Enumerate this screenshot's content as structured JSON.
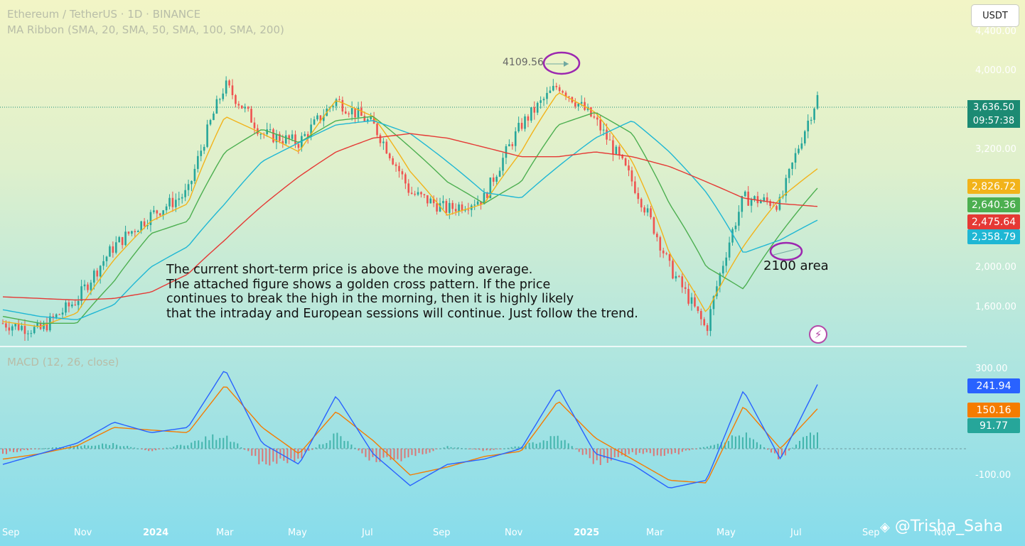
{
  "header": {
    "symbol_line": "Ethereum / TetherUS · 1D · BINANCE",
    "indicator_line": "MA Ribbon (SMA, 20, SMA, 50, SMA, 100, SMA, 200)",
    "macd_label": "MACD (12, 26, close)",
    "currency_button": "USDT"
  },
  "annotations": {
    "peak_label": "4109.56",
    "support_label": "2100 area",
    "note": "The current short-term price is above the moving average.\nThe attached figure shows a golden cross pattern. If the price\ncontinues to break the high in the morning, then it is highly likely\nthat the intraday and European sessions will continue. Just follow the trend."
  },
  "price_axis_ticks": [
    "4,400.00",
    "4,000.00",
    "3,200.00",
    "2,000.00",
    "1,600.00"
  ],
  "macd_axis_ticks": [
    "300.00",
    "-100.00"
  ],
  "price_tags": {
    "last": "3,636.50",
    "countdown": "09:57:38",
    "sma20": "2,826.72",
    "sma50": "2,640.36",
    "sma200": "2,475.64",
    "sma100": "2,358.79"
  },
  "macd_tags": {
    "macd": "241.94",
    "signal": "150.16",
    "hist": "91.77"
  },
  "x_axis_labels": [
    "Sep",
    "Nov",
    "2024",
    "Mar",
    "May",
    "Jul",
    "Sep",
    "Nov",
    "2025",
    "Mar",
    "May",
    "Jul",
    "Sep",
    "Nov"
  ],
  "watermark": "@Trisha_Saha",
  "colors": {
    "up": "#26a69a",
    "down": "#ef5350",
    "sma20": "#f2b31a",
    "sma50": "#4caf50",
    "sma100": "#1fb7d4",
    "sma200": "#e53935",
    "macd": "#2962ff",
    "signal": "#f57c00",
    "annotation": "#9c27b0"
  },
  "chart_data": [
    {
      "type": "line",
      "title": "Ethereum / TetherUS · 1D · BINANCE",
      "ylim": [
        1450,
        4500
      ],
      "x": [
        "Sep 2023",
        "Oct 2023",
        "Nov 2023",
        "Dec 2023",
        "Jan 2024",
        "Feb 2024",
        "Mar 2024",
        "Apr 2024",
        "May 2024",
        "Jun 2024",
        "Jul 2024",
        "Aug 2024",
        "Sep 2024",
        "Oct 2024",
        "Nov 2024",
        "Dec 2024",
        "Jan 2025",
        "Feb 2025",
        "Mar 2025",
        "Apr 2025",
        "May 2025",
        "Jun 2025",
        "Jul 2025"
      ],
      "series": [
        {
          "name": "Price",
          "values": [
            1640,
            1600,
            1780,
            2150,
            2400,
            2600,
            3800,
            3200,
            3100,
            3600,
            3300,
            2600,
            2450,
            2550,
            3300,
            3800,
            3350,
            2700,
            2000,
            1600,
            2550,
            2500,
            3636.5
          ]
        },
        {
          "name": "SMA 20",
          "values": [
            1650,
            1620,
            1700,
            2050,
            2350,
            2500,
            3400,
            3200,
            3000,
            3600,
            3400,
            2800,
            2400,
            2500,
            3000,
            3700,
            3450,
            2900,
            2100,
            1700,
            2150,
            2550,
            2826.72
          ]
        },
        {
          "name": "SMA 50",
          "values": [
            1680,
            1640,
            1640,
            1900,
            2250,
            2350,
            3000,
            3250,
            3100,
            3350,
            3400,
            3050,
            2700,
            2500,
            2700,
            3300,
            3450,
            3200,
            2500,
            2000,
            1850,
            2250,
            2640.36
          ]
        },
        {
          "name": "SMA 100",
          "values": [
            1720,
            1680,
            1660,
            1750,
            2000,
            2150,
            2500,
            2900,
            3100,
            3300,
            3350,
            3200,
            2900,
            2600,
            2550,
            2850,
            3150,
            3350,
            3000,
            2600,
            2100,
            2200,
            2358.79
          ]
        },
        {
          "name": "SMA 200",
          "values": [
            1800,
            1790,
            1780,
            1790,
            1830,
            1950,
            2200,
            2480,
            2750,
            3000,
            3150,
            3200,
            3150,
            3050,
            2950,
            2950,
            3000,
            2950,
            2850,
            2700,
            2550,
            2500,
            2475.64
          ]
        }
      ],
      "annotations": [
        {
          "label": "4109.56",
          "x": "Dec 2024",
          "y": 4109.56
        },
        {
          "label": "2100 area",
          "x": "Jun 2025",
          "y": 2100
        }
      ]
    },
    {
      "type": "line",
      "title": "MACD (12, 26, close)",
      "ylim": [
        -200,
        320
      ],
      "x": [
        "Sep 2023",
        "Oct 2023",
        "Nov 2023",
        "Dec 2023",
        "Jan 2024",
        "Feb 2024",
        "Mar 2024",
        "Apr 2024",
        "May 2024",
        "Jun 2024",
        "Jul 2024",
        "Aug 2024",
        "Sep 2024",
        "Oct 2024",
        "Nov 2024",
        "Dec 2024",
        "Jan 2025",
        "Feb 2025",
        "Mar 2025",
        "Apr 2025",
        "May 2025",
        "Jun 2025",
        "Jul 2025"
      ],
      "series": [
        {
          "name": "MACD",
          "values": [
            -60,
            -20,
            20,
            100,
            60,
            80,
            300,
            20,
            -60,
            200,
            -20,
            -140,
            -60,
            -40,
            0,
            230,
            -20,
            -60,
            -150,
            -120,
            220,
            -40,
            241.94
          ]
        },
        {
          "name": "Signal",
          "values": [
            -40,
            -20,
            10,
            80,
            70,
            60,
            240,
            80,
            -20,
            140,
            30,
            -100,
            -70,
            -30,
            -10,
            180,
            40,
            -40,
            -120,
            -130,
            160,
            0,
            150.16
          ]
        },
        {
          "name": "Histogram",
          "values": [
            -20,
            0,
            10,
            20,
            -10,
            20,
            60,
            -60,
            -40,
            60,
            -50,
            -40,
            10,
            -10,
            10,
            50,
            -60,
            -20,
            -30,
            10,
            60,
            -40,
            91.77
          ]
        }
      ]
    }
  ]
}
